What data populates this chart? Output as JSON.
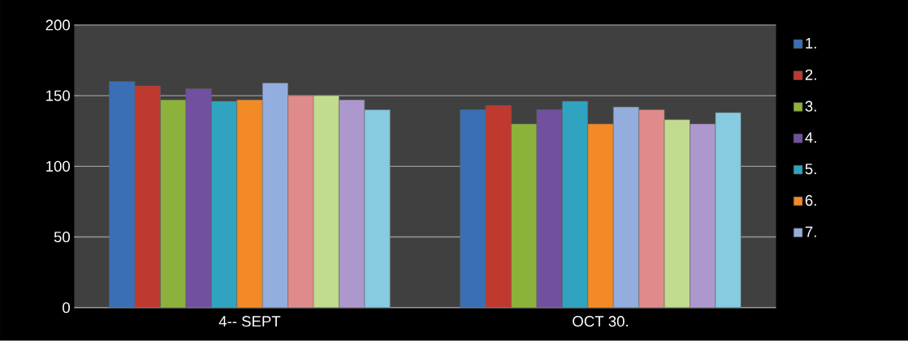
{
  "chart_data": {
    "type": "bar",
    "categories": [
      "4-- SEPT",
      "OCT 30."
    ],
    "series": [
      {
        "name": "1.",
        "color": "#3a6fb5",
        "values": [
          160,
          140
        ]
      },
      {
        "name": "2.",
        "color": "#c0392f",
        "values": [
          157,
          143
        ]
      },
      {
        "name": "3.",
        "color": "#8db23c",
        "values": [
          147,
          130
        ]
      },
      {
        "name": "4.",
        "color": "#7150a0",
        "values": [
          155,
          140
        ]
      },
      {
        "name": "5.",
        "color": "#2fa3bf",
        "values": [
          146,
          146
        ]
      },
      {
        "name": "6.",
        "color": "#f28a25",
        "values": [
          147,
          130
        ]
      },
      {
        "name": "7.",
        "color": "#93aede",
        "values": [
          159,
          142
        ]
      },
      {
        "color": "#e08b8b",
        "values": [
          150,
          140
        ]
      },
      {
        "color": "#c2dc8f",
        "values": [
          150,
          133
        ]
      },
      {
        "color": "#ac98cc",
        "values": [
          147,
          130
        ]
      },
      {
        "color": "#86cbe0",
        "values": [
          140,
          138
        ]
      }
    ],
    "ylim": [
      0,
      200
    ],
    "yticks": [
      0,
      50,
      100,
      150,
      200
    ],
    "grid": "y",
    "legend": "right"
  }
}
